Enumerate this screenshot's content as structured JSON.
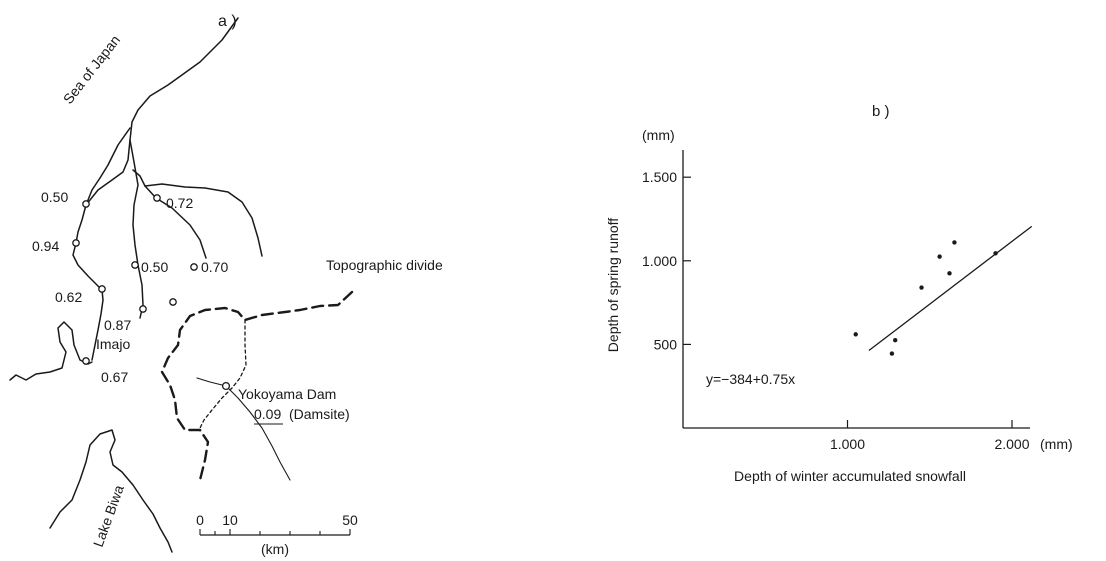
{
  "panel_a": {
    "label": "a )",
    "labels": {
      "sea": "Sea of Japan",
      "lake": "Lake Biwa",
      "divide": "Topographic divide",
      "imajo": "Imajo",
      "dam": "Yokoyama Dam",
      "dam_value": "0.09",
      "damsite": "(Damsite)"
    },
    "station_values": [
      "0.50",
      "0.94",
      "0.62",
      "0.87",
      "0.67",
      "0.72",
      "0.50",
      "0.70"
    ],
    "scale": {
      "ticks": [
        "0",
        "10",
        "50"
      ],
      "unit": "(km)"
    }
  },
  "panel_b": {
    "label": "b )",
    "equation": "y=−384+0.75x"
  },
  "chart_data": {
    "type": "scatter",
    "title": "",
    "xlabel": "Depth of winter accumulated snowfall",
    "ylabel": "Depth of spring runoff",
    "x_unit": "(mm)",
    "y_unit": "(mm)",
    "xlim": [
      0,
      2200
    ],
    "ylim": [
      0,
      1800
    ],
    "x_ticks": [
      1000,
      2000
    ],
    "x_tick_labels": [
      "1.000",
      "2.000"
    ],
    "y_ticks": [
      500,
      1000,
      1500
    ],
    "y_tick_labels": [
      "500",
      "1.000",
      "1.500"
    ],
    "grid": false,
    "points": [
      {
        "x": 1050,
        "y": 560
      },
      {
        "x": 1270,
        "y": 445
      },
      {
        "x": 1290,
        "y": 525
      },
      {
        "x": 1450,
        "y": 840
      },
      {
        "x": 1560,
        "y": 1025
      },
      {
        "x": 1620,
        "y": 925
      },
      {
        "x": 1650,
        "y": 1110
      },
      {
        "x": 1900,
        "y": 1045
      }
    ],
    "regression": {
      "intercept": -384,
      "slope": 0.75,
      "x_range": [
        1130,
        2120
      ]
    }
  }
}
